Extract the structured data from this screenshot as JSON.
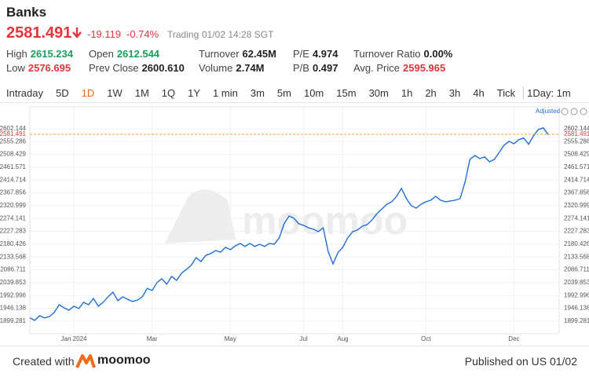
{
  "header": {
    "title": "Banks",
    "price": "2581.491",
    "change": "-19.119",
    "change_pct": "-0.74%",
    "status": "Trading",
    "time": "01/02 14:28 SGT",
    "price_color": "#e5343c"
  },
  "stats": [
    [
      {
        "label": "High",
        "value": "2615.234",
        "color": "#17a05d"
      },
      {
        "label": "Low",
        "value": "2576.695",
        "color": "#e5343c"
      }
    ],
    [
      {
        "label": "Open",
        "value": "2612.544",
        "color": "#17a05d"
      },
      {
        "label": "Prev Close",
        "value": "2600.610",
        "color": "#222222"
      }
    ],
    [
      {
        "label": "Turnover",
        "value": "62.45M",
        "color": "#222222"
      },
      {
        "label": "Volume",
        "value": "2.74M",
        "color": "#222222"
      }
    ],
    [
      {
        "label": "P/E",
        "value": "4.974",
        "color": "#222222"
      },
      {
        "label": "P/B",
        "value": "0.497",
        "color": "#222222"
      }
    ],
    [
      {
        "label": "Turnover Ratio",
        "value": "0.00%",
        "color": "#222222"
      },
      {
        "label": "Avg. Price",
        "value": "2595.965",
        "color": "#e5343c"
      }
    ]
  ],
  "tabs": {
    "items": [
      "Intraday",
      "5D",
      "1D",
      "1W",
      "1M",
      "1Q",
      "1Y",
      "1 min",
      "3m",
      "5m",
      "10m",
      "15m",
      "30m",
      "1h",
      "2h",
      "3h",
      "4h",
      "Tick"
    ],
    "active": 2,
    "interval": "1Day: 1m"
  },
  "chart_data": {
    "type": "line",
    "adjusted": "Adjusted",
    "watermark": "moomoo",
    "color": "#1f6fd6",
    "categories": [
      null,
      null,
      null,
      null,
      null,
      null,
      null,
      null,
      null,
      "Jan 2024",
      null,
      null,
      null,
      null,
      null,
      null,
      null,
      null,
      null,
      null,
      null,
      null,
      null,
      null,
      null,
      "Mar",
      null,
      null,
      null,
      null,
      null,
      null,
      null,
      null,
      null,
      null,
      null,
      null,
      null,
      null,
      null,
      "May",
      null,
      null,
      null,
      null,
      null,
      null,
      null,
      null,
      null,
      null,
      null,
      null,
      null,
      null,
      "Jul",
      null,
      null,
      null,
      null,
      null,
      null,
      null,
      "Aug",
      null,
      null,
      null,
      null,
      null,
      null,
      null,
      null,
      null,
      null,
      null,
      null,
      null,
      null,
      null,
      null,
      "Oct",
      null,
      null,
      null,
      null,
      null,
      null,
      null,
      null,
      null,
      null,
      null,
      null,
      null,
      null,
      null,
      null,
      null,
      "Dec",
      null,
      null,
      null,
      null,
      null,
      null,
      null
    ],
    "values": [
      1911,
      1902,
      1919,
      1911,
      1916,
      1931,
      1959,
      1948,
      1939,
      1954,
      1945,
      1968,
      1959,
      1982,
      1954,
      1968,
      1988,
      2005,
      1974,
      1988,
      1979,
      1971,
      1976,
      1988,
      2019,
      2011,
      2040,
      2054,
      2034,
      2063,
      2048,
      2074,
      2088,
      2103,
      2131,
      2117,
      2140,
      2146,
      2157,
      2151,
      2169,
      2160,
      2174,
      2183,
      2172,
      2183,
      2172,
      2180,
      2172,
      2183,
      2180,
      2203,
      2255,
      2283,
      2275,
      2255,
      2249,
      2240,
      2235,
      2226,
      2240,
      2154,
      2108,
      2149,
      2169,
      2203,
      2226,
      2232,
      2246,
      2252,
      2269,
      2292,
      2309,
      2326,
      2335,
      2355,
      2384,
      2347,
      2321,
      2312,
      2326,
      2335,
      2341,
      2355,
      2341,
      2335,
      2338,
      2341,
      2347,
      2407,
      2490,
      2504,
      2493,
      2499,
      2481,
      2490,
      2516,
      2542,
      2556,
      2547,
      2562,
      2568,
      2545,
      2576,
      2599,
      2605,
      2581
    ],
    "ylim": [
      1853,
      2636
    ],
    "yticks": [
      2602.144,
      2555.286,
      2508.429,
      2461.571,
      2414.714,
      2367.856,
      2320.999,
      2274.141,
      2227.283,
      2180.426,
      2133.568,
      2086.711,
      2039.853,
      1992.996,
      1946.138,
      1899.281
    ],
    "reference_line": {
      "value": 2581.491,
      "color": "#f0a030",
      "label_color": "#e5343c"
    },
    "grid": true
  },
  "footer": {
    "created": "Created with",
    "brand": "moomoo",
    "published": "Published on US 01/02"
  }
}
